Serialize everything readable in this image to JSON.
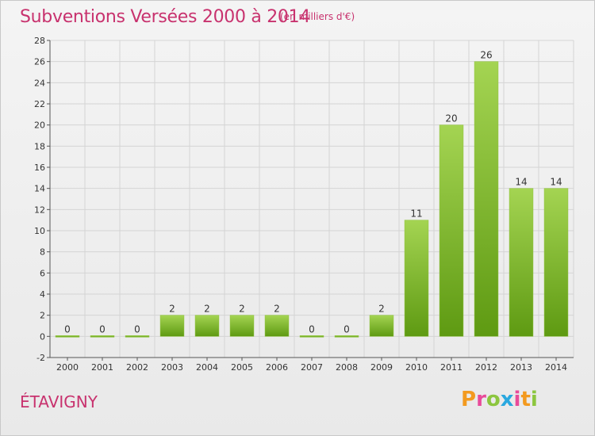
{
  "header": {
    "title": "Subventions Versées 2000 à 2014",
    "subtitle": "(en milliers d'€)"
  },
  "commune": "ÉTAVIGNY",
  "logo": {
    "text": "Proxiti"
  },
  "colors": {
    "bar_light": "#9ccd4a",
    "bar_dark": "#5e9a12",
    "title": "#c8326e"
  },
  "chart_data": {
    "type": "bar",
    "categories": [
      "2000",
      "2001",
      "2002",
      "2003",
      "2004",
      "2005",
      "2006",
      "2007",
      "2008",
      "2009",
      "2010",
      "2011",
      "2012",
      "2013",
      "2014"
    ],
    "values": [
      0,
      0,
      0,
      2,
      2,
      2,
      2,
      0,
      0,
      2,
      11,
      20,
      26,
      14,
      14
    ],
    "ylim": [
      -2,
      28
    ],
    "yticks": [
      -2,
      0,
      2,
      4,
      6,
      8,
      10,
      12,
      14,
      16,
      18,
      20,
      22,
      24,
      26,
      28
    ],
    "grid": true,
    "data_labels": true
  }
}
